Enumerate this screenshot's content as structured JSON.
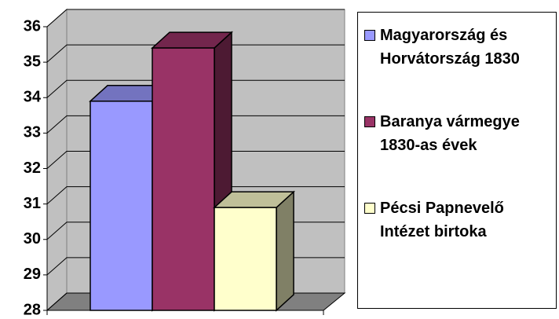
{
  "chart_data": {
    "type": "bar3d",
    "categories": [
      null
    ],
    "series": [
      {
        "name": "Magyarország és Horvátország 1830",
        "color": "#9999ff",
        "values": [
          33.9
        ]
      },
      {
        "name": "Baranya vármegye 1830-as évek",
        "color": "#993366",
        "values": [
          35.4
        ]
      },
      {
        "name": "Pécsi Papnevelő Intézet birtoka",
        "color": "#ffffcc",
        "values": [
          30.9
        ]
      }
    ],
    "ylim": [
      28,
      36
    ],
    "yticks": [
      28,
      29,
      30,
      31,
      32,
      33,
      34,
      35,
      36
    ],
    "grid": true,
    "legend": "right"
  }
}
